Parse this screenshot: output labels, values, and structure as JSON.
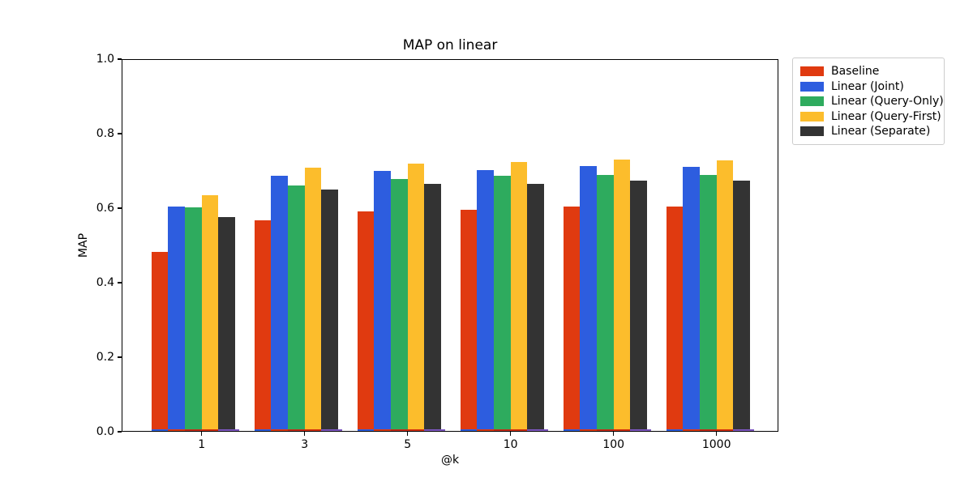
{
  "chart_data": {
    "type": "bar",
    "title": "MAP on linear",
    "xlabel": "@k",
    "ylabel": "MAP",
    "ylim": [
      0.0,
      1.0
    ],
    "ytick_labels": [
      "0.0",
      "0.2",
      "0.4",
      "0.6",
      "0.8",
      "1.0"
    ],
    "categories": [
      "1",
      "3",
      "5",
      "10",
      "100",
      "1000"
    ],
    "grid": false,
    "legend_position": "outside upper right",
    "series": [
      {
        "name": "Baseline",
        "color": "#e03a10",
        "values": [
          0.483,
          0.567,
          0.591,
          0.596,
          0.604,
          0.604
        ]
      },
      {
        "name": "Linear (Joint)",
        "color": "#2d5ddf",
        "values": [
          0.604,
          0.687,
          0.7,
          0.704,
          0.713,
          0.711
        ]
      },
      {
        "name": "Linear (Query-Only)",
        "color": "#2eab5e",
        "values": [
          0.602,
          0.661,
          0.68,
          0.687,
          0.691,
          0.691
        ]
      },
      {
        "name": "Linear (Query-First)",
        "color": "#fcbd2c",
        "values": [
          0.635,
          0.709,
          0.72,
          0.726,
          0.731,
          0.73
        ]
      },
      {
        "name": "Linear (Separate)",
        "color": "#333333",
        "values": [
          0.576,
          0.651,
          0.665,
          0.667,
          0.674,
          0.674
        ]
      }
    ],
    "baseline_strip_colors": [
      "#2d5ddf",
      "#e03a10",
      "#c62c17",
      "#d3300f",
      "#7e57c2"
    ]
  }
}
